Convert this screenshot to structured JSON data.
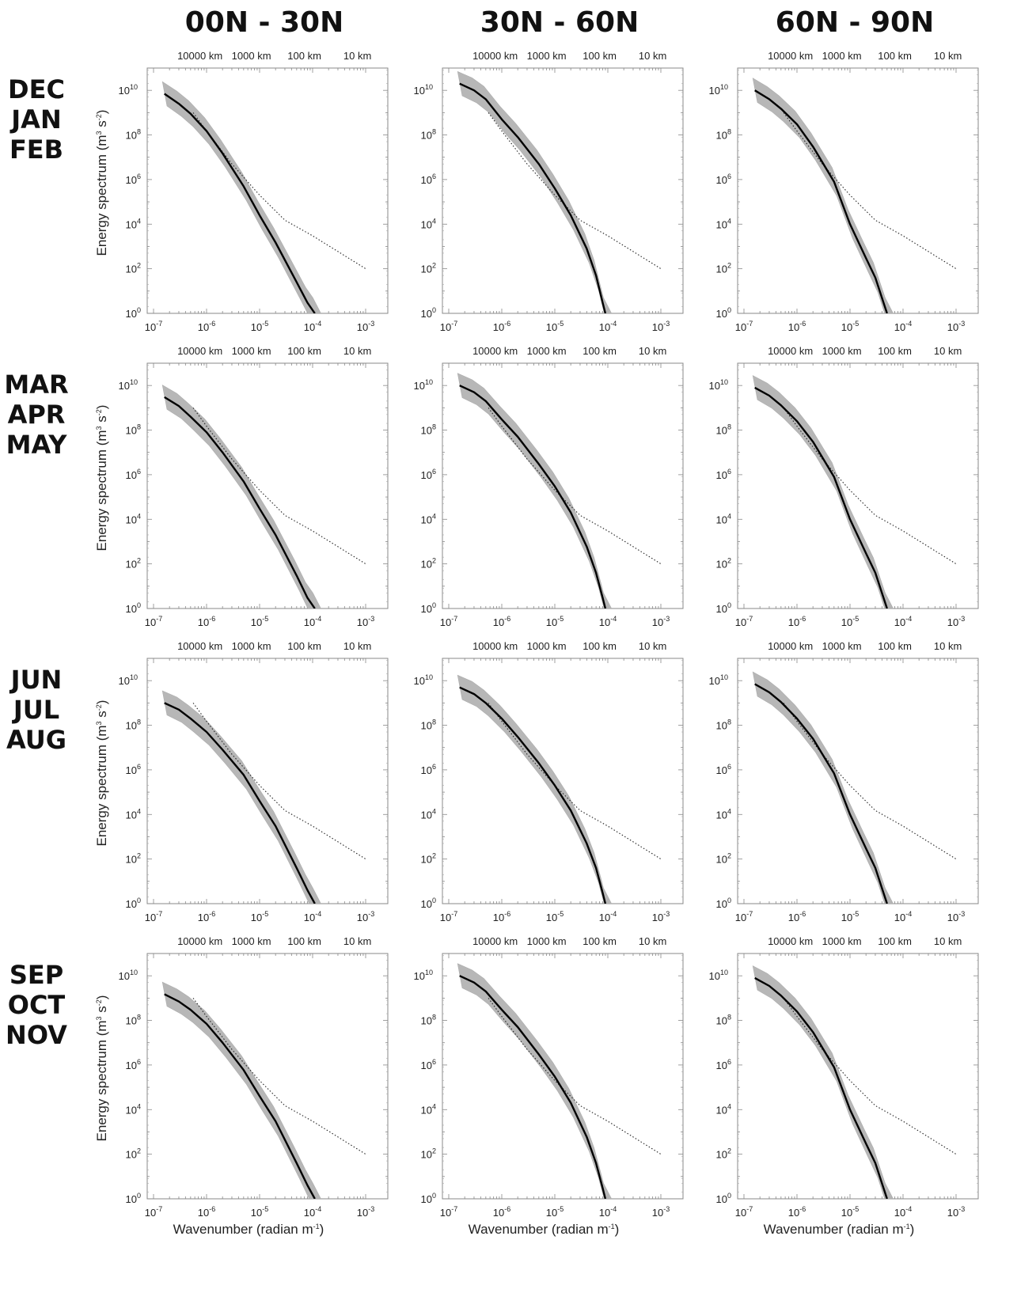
{
  "figure": {
    "column_titles": [
      "00N - 30N",
      "30N - 60N",
      "60N - 90N"
    ],
    "row_titles": [
      [
        "DEC",
        "JAN",
        "FEB"
      ],
      [
        "MAR",
        "APR",
        "MAY"
      ],
      [
        "JUN",
        "JUL",
        "AUG"
      ],
      [
        "SEP",
        "OCT",
        "NOV"
      ]
    ],
    "top_axis_ticks": [
      "10000 km",
      "1000 km",
      "100 km",
      "10 km"
    ],
    "xlabel": "Wavenumber (radian m",
    "xlabel_sup": "-1",
    "ylabel": "Energy spectrum (m",
    "ylabel_sup1": "3",
    "ylabel_mid": " s",
    "ylabel_sup2": "-2",
    "colors": {
      "envelope": "#b4b4b4",
      "mean": "#000000",
      "reference": "#222222",
      "frame": "#888888"
    }
  },
  "chart_data": [
    {
      "type": "line",
      "region": "00N - 30N",
      "season": "DEC JAN FEB",
      "x_scale": "log",
      "y_scale": "log",
      "xlim": [
        1e-07,
        0.001
      ],
      "ylim": [
        1,
        100000000000.0
      ],
      "x": [
        1.6e-07,
        3e-07,
        5e-07,
        1e-06,
        2e-06,
        5e-06,
        1e-05,
        2e-05,
        5e-05,
        8e-05,
        0.00011
      ],
      "series": [
        {
          "role": "mean",
          "values": [
            7000000000.0,
            2500000000.0,
            900000000.0,
            150000000.0,
            15000000.0,
            500000.0,
            25000.0,
            1500,
            25,
            3,
            1
          ]
        },
        {
          "role": "reference",
          "x": [
            5.6e-07,
            1e-06,
            3e-06,
            1e-05,
            3e-05,
            0.0001,
            0.001
          ],
          "values": [
            1000000000.0,
            150000000.0,
            5000000.0,
            200000.0,
            15000.0,
            3000.0,
            100
          ]
        }
      ]
    },
    {
      "type": "line",
      "region": "30N - 60N",
      "season": "DEC JAN FEB",
      "x_scale": "log",
      "y_scale": "log",
      "xlim": [
        1e-07,
        0.001
      ],
      "ylim": [
        1,
        100000000000.0
      ],
      "x": [
        1.6e-07,
        3e-07,
        5e-07,
        1e-06,
        2e-06,
        5e-06,
        1e-05,
        2e-05,
        4e-05,
        6e-05,
        8e-05,
        9e-05
      ],
      "series": [
        {
          "role": "mean",
          "values": [
            20000000000.0,
            10000000000.0,
            4000000000.0,
            500000000.0,
            80000000.0,
            5000000.0,
            400000.0,
            25000.0,
            800,
            50,
            3,
            1
          ]
        },
        {
          "role": "reference",
          "x": [
            5.6e-07,
            1e-06,
            3e-06,
            1e-05,
            3e-05,
            0.0001,
            0.001
          ],
          "values": [
            1000000000.0,
            150000000.0,
            5000000.0,
            200000.0,
            15000.0,
            3000.0,
            100
          ]
        }
      ]
    },
    {
      "type": "line",
      "region": "60N - 90N",
      "season": "DEC JAN FEB",
      "x_scale": "log",
      "y_scale": "log",
      "xlim": [
        1e-07,
        0.001
      ],
      "ylim": [
        1,
        100000000000.0
      ],
      "x": [
        1.6e-07,
        3e-07,
        5e-07,
        1e-06,
        2e-06,
        5e-06,
        1e-05,
        2e-05,
        3e-05,
        4e-05,
        5e-05
      ],
      "series": [
        {
          "role": "mean",
          "values": [
            10000000000.0,
            4000000000.0,
            1500000000.0,
            300000000.0,
            30000000.0,
            800000.0,
            10000.0,
            300,
            40,
            5,
            1
          ]
        },
        {
          "role": "reference",
          "x": [
            5.6e-07,
            1e-06,
            3e-06,
            1e-05,
            3e-05,
            0.0001,
            0.001
          ],
          "values": [
            1000000000.0,
            150000000.0,
            5000000.0,
            200000.0,
            15000.0,
            3000.0,
            100
          ]
        }
      ]
    },
    {
      "type": "line",
      "region": "00N - 30N",
      "season": "MAR APR MAY",
      "x_scale": "log",
      "y_scale": "log",
      "xlim": [
        1e-07,
        0.001
      ],
      "ylim": [
        1,
        100000000000.0
      ],
      "x": [
        1.6e-07,
        3e-07,
        5e-07,
        1e-06,
        2e-06,
        5e-06,
        1e-05,
        2e-05,
        5e-05,
        8e-05,
        0.00011
      ],
      "series": [
        {
          "role": "mean",
          "values": [
            3000000000.0,
            1200000000.0,
            400000000.0,
            80000000.0,
            10000000.0,
            500000.0,
            30000.0,
            2000,
            30,
            3,
            1
          ]
        },
        {
          "role": "reference",
          "x": [
            5.6e-07,
            1e-06,
            3e-06,
            1e-05,
            3e-05,
            0.0001,
            0.001
          ],
          "values": [
            1000000000.0,
            150000000.0,
            5000000.0,
            200000.0,
            15000.0,
            3000.0,
            100
          ]
        }
      ]
    },
    {
      "type": "line",
      "region": "30N - 60N",
      "season": "MAR APR MAY",
      "x_scale": "log",
      "y_scale": "log",
      "xlim": [
        1e-07,
        0.001
      ],
      "ylim": [
        1,
        100000000000.0
      ],
      "x": [
        1.6e-07,
        3e-07,
        5e-07,
        1e-06,
        2e-06,
        5e-06,
        1e-05,
        2e-05,
        4e-05,
        6e-05,
        8e-05,
        9e-05
      ],
      "series": [
        {
          "role": "mean",
          "values": [
            10000000000.0,
            5000000000.0,
            2000000000.0,
            300000000.0,
            50000000.0,
            3000000.0,
            300000.0,
            20000.0,
            600,
            40,
            3,
            1
          ]
        },
        {
          "role": "reference",
          "x": [
            5.6e-07,
            1e-06,
            3e-06,
            1e-05,
            3e-05,
            0.0001,
            0.001
          ],
          "values": [
            1000000000.0,
            150000000.0,
            5000000.0,
            200000.0,
            15000.0,
            3000.0,
            100
          ]
        }
      ]
    },
    {
      "type": "line",
      "region": "60N - 90N",
      "season": "MAR APR MAY",
      "x_scale": "log",
      "y_scale": "log",
      "xlim": [
        1e-07,
        0.001
      ],
      "ylim": [
        1,
        100000000000.0
      ],
      "x": [
        1.6e-07,
        3e-07,
        5e-07,
        1e-06,
        2e-06,
        5e-06,
        1e-05,
        2e-05,
        3e-05,
        4e-05,
        5e-05
      ],
      "series": [
        {
          "role": "mean",
          "values": [
            8000000000.0,
            3500000000.0,
            1300000000.0,
            250000000.0,
            30000000.0,
            800000.0,
            10000.0,
            300,
            40,
            5,
            1
          ]
        },
        {
          "role": "reference",
          "x": [
            5.6e-07,
            1e-06,
            3e-06,
            1e-05,
            3e-05,
            0.0001,
            0.001
          ],
          "values": [
            1000000000.0,
            150000000.0,
            5000000.0,
            200000.0,
            15000.0,
            3000.0,
            100
          ]
        }
      ]
    },
    {
      "type": "line",
      "region": "00N - 30N",
      "season": "JUN JUL AUG",
      "x_scale": "log",
      "y_scale": "log",
      "xlim": [
        1e-07,
        0.001
      ],
      "ylim": [
        1,
        100000000000.0
      ],
      "x": [
        1.6e-07,
        3e-07,
        5e-07,
        1e-06,
        2e-06,
        5e-06,
        1e-05,
        2e-05,
        5e-05,
        8e-05,
        0.00011
      ],
      "series": [
        {
          "role": "mean",
          "values": [
            1000000000.0,
            500000000.0,
            200000000.0,
            50000000.0,
            8000000.0,
            600000.0,
            40000.0,
            3000,
            40,
            4,
            1
          ]
        },
        {
          "role": "reference",
          "x": [
            5.6e-07,
            1e-06,
            3e-06,
            1e-05,
            3e-05,
            0.0001,
            0.001
          ],
          "values": [
            1000000000.0,
            150000000.0,
            5000000.0,
            200000.0,
            15000.0,
            3000.0,
            100
          ]
        }
      ]
    },
    {
      "type": "line",
      "region": "30N - 60N",
      "season": "JUN JUL AUG",
      "x_scale": "log",
      "y_scale": "log",
      "xlim": [
        1e-07,
        0.001
      ],
      "ylim": [
        1,
        100000000000.0
      ],
      "x": [
        1.6e-07,
        3e-07,
        5e-07,
        1e-06,
        2e-06,
        5e-06,
        1e-05,
        2e-05,
        4e-05,
        6e-05,
        8e-05,
        9e-05
      ],
      "series": [
        {
          "role": "mean",
          "values": [
            5000000000.0,
            2500000000.0,
            1000000000.0,
            200000000.0,
            30000000.0,
            2000000.0,
            200000.0,
            15000.0,
            500,
            40,
            3,
            1
          ]
        },
        {
          "role": "reference",
          "x": [
            5.6e-07,
            1e-06,
            3e-06,
            1e-05,
            3e-05,
            0.0001,
            0.001
          ],
          "values": [
            1000000000.0,
            150000000.0,
            5000000.0,
            200000.0,
            15000.0,
            3000.0,
            100
          ]
        }
      ]
    },
    {
      "type": "line",
      "region": "60N - 90N",
      "season": "JUN JUL AUG",
      "x_scale": "log",
      "y_scale": "log",
      "xlim": [
        1e-07,
        0.001
      ],
      "ylim": [
        1,
        100000000000.0
      ],
      "x": [
        1.6e-07,
        3e-07,
        5e-07,
        1e-06,
        2e-06,
        5e-06,
        1e-05,
        2e-05,
        3e-05,
        4e-05,
        5e-05
      ],
      "series": [
        {
          "role": "mean",
          "values": [
            7000000000.0,
            3000000000.0,
            1100000000.0,
            200000000.0,
            25000000.0,
            700000.0,
            10000.0,
            300,
            40,
            5,
            1
          ]
        },
        {
          "role": "reference",
          "x": [
            5.6e-07,
            1e-06,
            3e-06,
            1e-05,
            3e-05,
            0.0001,
            0.001
          ],
          "values": [
            1000000000.0,
            150000000.0,
            5000000.0,
            200000.0,
            15000.0,
            3000.0,
            100
          ]
        }
      ]
    },
    {
      "type": "line",
      "region": "00N - 30N",
      "season": "SEP OCT NOV",
      "x_scale": "log",
      "y_scale": "log",
      "xlim": [
        1e-07,
        0.001
      ],
      "ylim": [
        1,
        100000000000.0
      ],
      "x": [
        1.6e-07,
        3e-07,
        5e-07,
        1e-06,
        2e-06,
        5e-06,
        1e-05,
        2e-05,
        5e-05,
        8e-05,
        0.00011
      ],
      "series": [
        {
          "role": "mean",
          "values": [
            1500000000.0,
            700000000.0,
            300000000.0,
            70000000.0,
            10000000.0,
            600000.0,
            40000.0,
            3000,
            40,
            4,
            1
          ]
        },
        {
          "role": "reference",
          "x": [
            5.6e-07,
            1e-06,
            3e-06,
            1e-05,
            3e-05,
            0.0001,
            0.001
          ],
          "values": [
            1000000000.0,
            150000000.0,
            5000000.0,
            200000.0,
            15000.0,
            3000.0,
            100
          ]
        }
      ]
    },
    {
      "type": "line",
      "region": "30N - 60N",
      "season": "SEP OCT NOV",
      "x_scale": "log",
      "y_scale": "log",
      "xlim": [
        1e-07,
        0.001
      ],
      "ylim": [
        1,
        100000000000.0
      ],
      "x": [
        1.6e-07,
        3e-07,
        5e-07,
        1e-06,
        2e-06,
        5e-06,
        1e-05,
        2e-05,
        4e-05,
        6e-05,
        8e-05,
        9e-05
      ],
      "series": [
        {
          "role": "mean",
          "values": [
            10000000000.0,
            5000000000.0,
            2000000000.0,
            300000000.0,
            50000000.0,
            3000000.0,
            300000.0,
            20000.0,
            600,
            40,
            3,
            1
          ]
        },
        {
          "role": "reference",
          "x": [
            5.6e-07,
            1e-06,
            3e-06,
            1e-05,
            3e-05,
            0.0001,
            0.001
          ],
          "values": [
            1000000000.0,
            150000000.0,
            5000000.0,
            200000.0,
            15000.0,
            3000.0,
            100
          ]
        }
      ]
    },
    {
      "type": "line",
      "region": "60N - 90N",
      "season": "SEP OCT NOV",
      "x_scale": "log",
      "y_scale": "log",
      "xlim": [
        1e-07,
        0.001
      ],
      "ylim": [
        1,
        100000000000.0
      ],
      "x": [
        1.6e-07,
        3e-07,
        5e-07,
        1e-06,
        2e-06,
        5e-06,
        1e-05,
        2e-05,
        3e-05,
        4e-05,
        5e-05
      ],
      "series": [
        {
          "role": "mean",
          "values": [
            8000000000.0,
            3500000000.0,
            1300000000.0,
            250000000.0,
            30000000.0,
            800000.0,
            10000.0,
            300,
            40,
            5,
            1
          ]
        },
        {
          "role": "reference",
          "x": [
            5.6e-07,
            1e-06,
            3e-06,
            1e-05,
            3e-05,
            0.0001,
            0.001
          ],
          "values": [
            1000000000.0,
            150000000.0,
            5000000.0,
            200000.0,
            15000.0,
            3000.0,
            100
          ]
        }
      ]
    }
  ]
}
